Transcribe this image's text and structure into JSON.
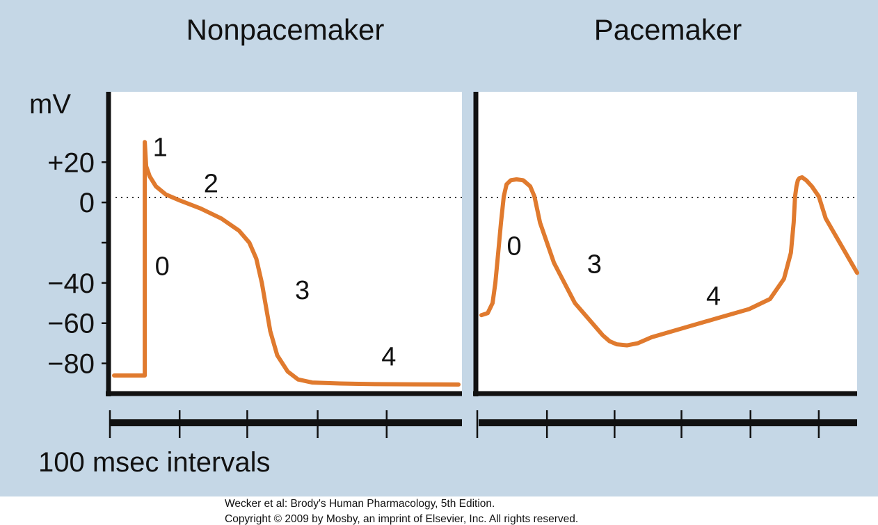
{
  "colors": {
    "background": "#c5d7e6",
    "plot_bg": "#ffffff",
    "axis": "#111111",
    "trace": "#e07a2e",
    "zero_line": "#333333"
  },
  "chart_data": [
    {
      "type": "line",
      "title": "Nonpacemaker",
      "ylabel": "mV",
      "xlabel": "100 msec intervals",
      "ylim": [
        -95,
        55
      ],
      "yticks": [
        {
          "value": 20,
          "label": "+20"
        },
        {
          "value": 0,
          "label": "0"
        },
        {
          "value": -20,
          "label": ""
        },
        {
          "value": -40,
          "label": "−40"
        },
        {
          "value": -60,
          "label": "−60"
        },
        {
          "value": -80,
          "label": "−80"
        }
      ],
      "xlim": [
        0,
        505
      ],
      "xticks": [
        0,
        100,
        197,
        298,
        397
      ],
      "zero_line": true,
      "series": [
        {
          "x": [
            6,
            50,
            50,
            50,
            50,
            52,
            57,
            66,
            80,
            100,
            130,
            160,
            185,
            200,
            210,
            218,
            224,
            230,
            240,
            255,
            270,
            290,
            330,
            380,
            440,
            500
          ],
          "y": [
            -86,
            -86,
            -24,
            30,
            30,
            18,
            13,
            8,
            4,
            1,
            -3,
            -8,
            -14,
            -20,
            -28,
            -40,
            -52,
            -64,
            -76,
            -84,
            -88,
            -89.5,
            -90,
            -90.3,
            -90.4,
            -90.5
          ]
        }
      ],
      "phase_labels": [
        {
          "label": "1",
          "x": 72,
          "y": 23
        },
        {
          "label": "2",
          "x": 145,
          "y": 5
        },
        {
          "label": "0",
          "x": 75,
          "y": -36
        },
        {
          "label": "3",
          "x": 276,
          "y": -48
        },
        {
          "label": "4",
          "x": 400,
          "y": -81
        }
      ]
    },
    {
      "type": "line",
      "title": "Pacemaker",
      "xlim": [
        0,
        545
      ],
      "ylim": [
        -95,
        55
      ],
      "xticks": [
        0,
        100,
        197,
        293,
        392,
        490
      ],
      "zero_line": true,
      "series": [
        {
          "x": [
            6,
            15,
            22,
            26,
            30,
            34,
            38,
            42,
            48,
            56,
            66,
            76,
            82,
            90,
            110,
            140,
            170,
            180,
            190,
            200,
            215,
            230,
            250,
            290,
            340,
            390,
            420,
            440,
            450,
            454,
            456,
            458,
            460,
            462,
            466,
            472,
            480,
            490,
            500,
            515,
            530,
            545
          ],
          "y": [
            -56,
            -55,
            -50,
            -40,
            -25,
            -10,
            3,
            9,
            11,
            11.5,
            11,
            8,
            3,
            -10,
            -30,
            -50,
            -62,
            -66,
            -69,
            -70.5,
            -71,
            -70,
            -67,
            -63,
            -58,
            -53,
            -48,
            -38,
            -25,
            -10,
            3,
            8,
            11,
            12,
            12.5,
            11,
            8,
            3,
            -8,
            -17,
            -26,
            -35
          ]
        }
      ],
      "phase_labels": [
        {
          "label": "0",
          "x": 53,
          "y": -26
        },
        {
          "label": "3",
          "x": 168,
          "y": -35
        },
        {
          "label": "4",
          "x": 339,
          "y": -51
        }
      ]
    }
  ],
  "credit": {
    "line1": "Wecker et al: Brody's Human Pharmacology, 5th Edition.",
    "line2": "Copyright © 2009 by Mosby, an imprint of Elsevier, Inc. All rights reserved."
  }
}
